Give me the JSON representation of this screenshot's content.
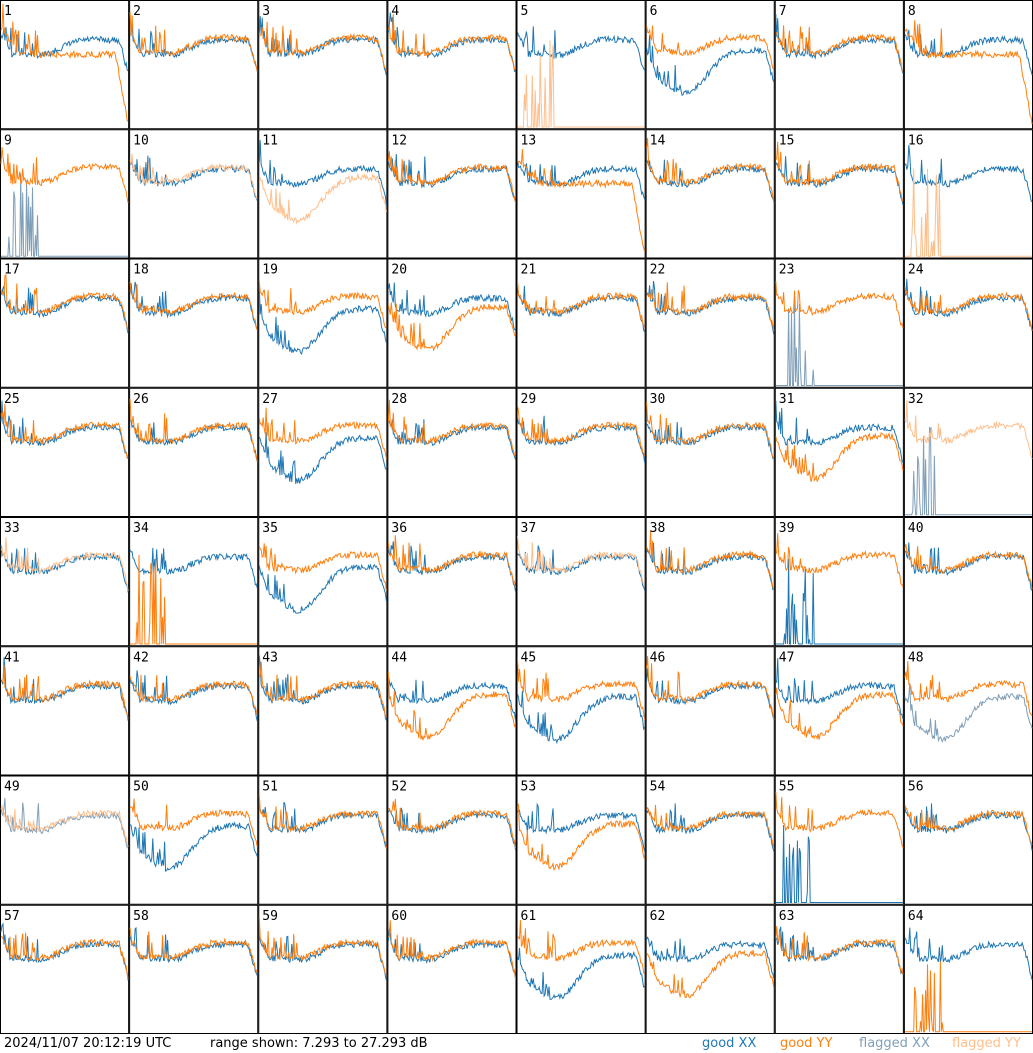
{
  "footer": {
    "timestamp": "2024/11/07 20:12:19 UTC",
    "range_text": "range shown: 7.293 to 27.293 dB",
    "legend": {
      "good_xx": "good XX",
      "good_yy": "good YY",
      "flagged_xx": "flagged XX",
      "flagged_yy": "flagged YY"
    }
  },
  "colors": {
    "good_xx": "#1f77b4",
    "good_yy": "#ff7f0e",
    "flagged_xx": "#7f9fb8",
    "flagged_yy": "#ffbf8c"
  },
  "chart_data": {
    "type": "line",
    "ylim": [
      7.293,
      27.293
    ],
    "yunit": "dB",
    "panels": [
      {
        "label": "1",
        "xx": "good",
        "yy": "good",
        "shape": "yy_dropend"
      },
      {
        "label": "2",
        "xx": "good",
        "yy": "good",
        "shape": "normal"
      },
      {
        "label": "3",
        "xx": "good",
        "yy": "good",
        "shape": "normal"
      },
      {
        "label": "4",
        "xx": "good",
        "yy": "good",
        "shape": "normal"
      },
      {
        "label": "5",
        "xx": "good",
        "yy": "flagged",
        "shape": "yy_dead"
      },
      {
        "label": "6",
        "xx": "good",
        "yy": "good",
        "shape": "xx_low"
      },
      {
        "label": "7",
        "xx": "good",
        "yy": "good",
        "shape": "normal"
      },
      {
        "label": "8",
        "xx": "good",
        "yy": "good",
        "shape": "yy_dropend"
      },
      {
        "label": "9",
        "xx": "flagged",
        "yy": "good",
        "shape": "xx_dead"
      },
      {
        "label": "10",
        "xx": "good",
        "yy": "flagged",
        "shape": "normal"
      },
      {
        "label": "11",
        "xx": "good",
        "yy": "flagged",
        "shape": "yy_low"
      },
      {
        "label": "12",
        "xx": "good",
        "yy": "good",
        "shape": "normal"
      },
      {
        "label": "13",
        "xx": "good",
        "yy": "good",
        "shape": "yy_dropend"
      },
      {
        "label": "14",
        "xx": "good",
        "yy": "good",
        "shape": "normal"
      },
      {
        "label": "15",
        "xx": "good",
        "yy": "good",
        "shape": "normal"
      },
      {
        "label": "16",
        "xx": "good",
        "yy": "flagged",
        "shape": "yy_dead"
      },
      {
        "label": "17",
        "xx": "good",
        "yy": "good",
        "shape": "normal"
      },
      {
        "label": "18",
        "xx": "good",
        "yy": "good",
        "shape": "normal"
      },
      {
        "label": "19",
        "xx": "good",
        "yy": "good",
        "shape": "xx_low"
      },
      {
        "label": "20",
        "xx": "good",
        "yy": "good",
        "shape": "yy_low"
      },
      {
        "label": "21",
        "xx": "good",
        "yy": "good",
        "shape": "normal"
      },
      {
        "label": "22",
        "xx": "good",
        "yy": "good",
        "shape": "normal"
      },
      {
        "label": "23",
        "xx": "flagged",
        "yy": "good",
        "shape": "xx_dead"
      },
      {
        "label": "24",
        "xx": "good",
        "yy": "good",
        "shape": "normal"
      },
      {
        "label": "25",
        "xx": "good",
        "yy": "good",
        "shape": "normal"
      },
      {
        "label": "26",
        "xx": "good",
        "yy": "good",
        "shape": "normal"
      },
      {
        "label": "27",
        "xx": "good",
        "yy": "good",
        "shape": "xx_low"
      },
      {
        "label": "28",
        "xx": "good",
        "yy": "good",
        "shape": "normal"
      },
      {
        "label": "29",
        "xx": "good",
        "yy": "good",
        "shape": "normal"
      },
      {
        "label": "30",
        "xx": "good",
        "yy": "good",
        "shape": "normal"
      },
      {
        "label": "31",
        "xx": "good",
        "yy": "good",
        "shape": "yy_low"
      },
      {
        "label": "32",
        "xx": "flagged",
        "yy": "flagged",
        "shape": "xx_dead"
      },
      {
        "label": "33",
        "xx": "good",
        "yy": "flagged",
        "shape": "normal"
      },
      {
        "label": "34",
        "xx": "good",
        "yy": "good",
        "shape": "yy_dead"
      },
      {
        "label": "35",
        "xx": "good",
        "yy": "good",
        "shape": "xx_low"
      },
      {
        "label": "36",
        "xx": "good",
        "yy": "good",
        "shape": "normal"
      },
      {
        "label": "37",
        "xx": "good",
        "yy": "flagged",
        "shape": "normal"
      },
      {
        "label": "38",
        "xx": "good",
        "yy": "good",
        "shape": "normal"
      },
      {
        "label": "39",
        "xx": "good",
        "yy": "good",
        "shape": "xx_dead"
      },
      {
        "label": "40",
        "xx": "good",
        "yy": "good",
        "shape": "normal"
      },
      {
        "label": "41",
        "xx": "good",
        "yy": "good",
        "shape": "normal"
      },
      {
        "label": "42",
        "xx": "good",
        "yy": "good",
        "shape": "normal"
      },
      {
        "label": "43",
        "xx": "good",
        "yy": "good",
        "shape": "normal"
      },
      {
        "label": "44",
        "xx": "good",
        "yy": "good",
        "shape": "yy_low"
      },
      {
        "label": "45",
        "xx": "good",
        "yy": "good",
        "shape": "xx_low"
      },
      {
        "label": "46",
        "xx": "good",
        "yy": "good",
        "shape": "normal"
      },
      {
        "label": "47",
        "xx": "good",
        "yy": "good",
        "shape": "yy_low"
      },
      {
        "label": "48",
        "xx": "flagged",
        "yy": "good",
        "shape": "xx_low"
      },
      {
        "label": "49",
        "xx": "flagged",
        "yy": "flagged",
        "shape": "normal"
      },
      {
        "label": "50",
        "xx": "good",
        "yy": "good",
        "shape": "xx_low"
      },
      {
        "label": "51",
        "xx": "good",
        "yy": "good",
        "shape": "normal"
      },
      {
        "label": "52",
        "xx": "good",
        "yy": "good",
        "shape": "normal"
      },
      {
        "label": "53",
        "xx": "good",
        "yy": "good",
        "shape": "yy_low"
      },
      {
        "label": "54",
        "xx": "good",
        "yy": "good",
        "shape": "normal"
      },
      {
        "label": "55",
        "xx": "good",
        "yy": "good",
        "shape": "xx_dead"
      },
      {
        "label": "56",
        "xx": "good",
        "yy": "good",
        "shape": "normal"
      },
      {
        "label": "57",
        "xx": "good",
        "yy": "good",
        "shape": "normal"
      },
      {
        "label": "58",
        "xx": "good",
        "yy": "good",
        "shape": "normal"
      },
      {
        "label": "59",
        "xx": "good",
        "yy": "good",
        "shape": "normal"
      },
      {
        "label": "60",
        "xx": "good",
        "yy": "good",
        "shape": "normal"
      },
      {
        "label": "61",
        "xx": "good",
        "yy": "good",
        "shape": "xx_low"
      },
      {
        "label": "62",
        "xx": "good",
        "yy": "good",
        "shape": "yy_low"
      },
      {
        "label": "63",
        "xx": "good",
        "yy": "good",
        "shape": "normal"
      },
      {
        "label": "64",
        "xx": "good",
        "yy": "good",
        "shape": "yy_dead"
      }
    ]
  }
}
